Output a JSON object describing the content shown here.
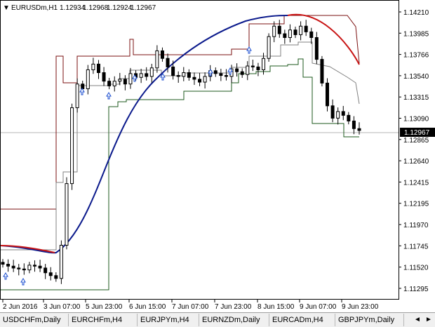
{
  "window": {
    "symbol": "EURUSDm,H1",
    "open": "1.12934",
    "high": "1.12968",
    "low": "1.12924",
    "close": "1.12967"
  },
  "price_axis": {
    "labels": [
      "1.14210",
      "1.13985",
      "1.13766",
      "1.13540",
      "1.13315",
      "1.13090",
      "1.12865",
      "1.12640",
      "1.12415",
      "1.12195",
      "1.11970",
      "1.11745",
      "1.11520",
      "1.11295"
    ],
    "current_price": "1.12967",
    "current_price_bg": "#000000"
  },
  "time_axis": {
    "labels": [
      "2 Jun 2016",
      "3 Jun 07:00",
      "5 Jun 23:00",
      "6 Jun 15:00",
      "7 Jun 07:00",
      "7 Jun 23:00",
      "8 Jun 15:00",
      "9 Jun 07:00",
      "9 Jun 23:00"
    ]
  },
  "tabs": [
    {
      "label": "USDCHFm,Daily",
      "active": false
    },
    {
      "label": "EURCHFm,H4",
      "active": false
    },
    {
      "label": "EURJPYm,H4",
      "active": false
    },
    {
      "label": "EURNZDm,Daily",
      "active": false
    },
    {
      "label": "EURCADm,H4",
      "active": false
    },
    {
      "label": "GBPJPYm,Daily",
      "active": false
    }
  ],
  "nav": {
    "left": "◄",
    "right": "►"
  },
  "colors": {
    "upper_channel": "#7b1010",
    "lower_channel": "#1e5a1e",
    "mid_channel": "#808080",
    "ma_blue": "#0b1a8c",
    "ma_red": "#c81414",
    "candles": "#000000",
    "arrows": "#1c4fd0"
  },
  "chart_data": {
    "type": "candlestick",
    "symbol": "EURUSDm",
    "timeframe": "H1",
    "ylim": [
      1.1125,
      1.1425
    ],
    "candles_approx": [
      1.1155,
      1.1153,
      1.1151,
      1.115,
      1.1149,
      1.1154,
      1.1153,
      1.1151,
      1.1146,
      1.1143,
      1.114,
      1.1175,
      1.124,
      1.132,
      1.1345,
      1.134,
      1.136,
      1.1366,
      1.1357,
      1.1348,
      1.1343,
      1.1348,
      1.135,
      1.1345,
      1.1356,
      1.1352,
      1.1356,
      1.1353,
      1.1362,
      1.138,
      1.1372,
      1.1363,
      1.1354,
      1.1353,
      1.1357,
      1.1352,
      1.135,
      1.1347,
      1.1353,
      1.1359,
      1.1356,
      1.1354,
      1.1353,
      1.1361,
      1.1358,
      1.1355,
      1.1364,
      1.1363,
      1.136,
      1.1372,
      1.1395,
      1.1406,
      1.1398,
      1.1394,
      1.1402,
      1.1397,
      1.1406,
      1.14,
      1.1394,
      1.1371,
      1.1346,
      1.1322,
      1.1309,
      1.1316,
      1.1312,
      1.1306,
      1.1298,
      1.1296
    ]
  }
}
